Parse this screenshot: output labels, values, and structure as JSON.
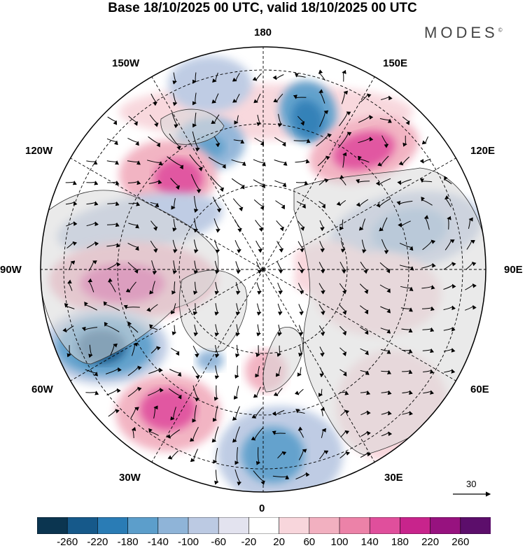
{
  "header": {
    "title": "Base 18/10/2025 00 UTC, valid 18/10/2025 00 UTC",
    "brand": "MODES",
    "brand_mark": "©"
  },
  "map": {
    "projection": "north-polar-stereographic",
    "longitude_labels": {
      "top": "180",
      "bottom": "0",
      "left": "90W",
      "right": "90E",
      "upper_left": "150W",
      "upper_right": "150E",
      "mid_upper_left": "120W",
      "mid_upper_right": "120E",
      "lower_left": "60W",
      "lower_right": "60E",
      "bottom_left": "30W",
      "bottom_right": "30E"
    },
    "reference_vector": {
      "label": "30"
    }
  },
  "colorbar": {
    "tick_labels": [
      "-260",
      "-220",
      "-180",
      "-140",
      "-100",
      "-60",
      "-20",
      "20",
      "60",
      "100",
      "140",
      "180",
      "220",
      "260"
    ],
    "colors": [
      "#0b3550",
      "#16598a",
      "#2a7cb5",
      "#5c9ecb",
      "#8fb4d8",
      "#bccae3",
      "#e3e3ef",
      "#ffffff",
      "#f8d6dc",
      "#f2b0c0",
      "#ec82a8",
      "#e04f9c",
      "#c8248c",
      "#97127f",
      "#5c0e6b"
    ]
  }
}
